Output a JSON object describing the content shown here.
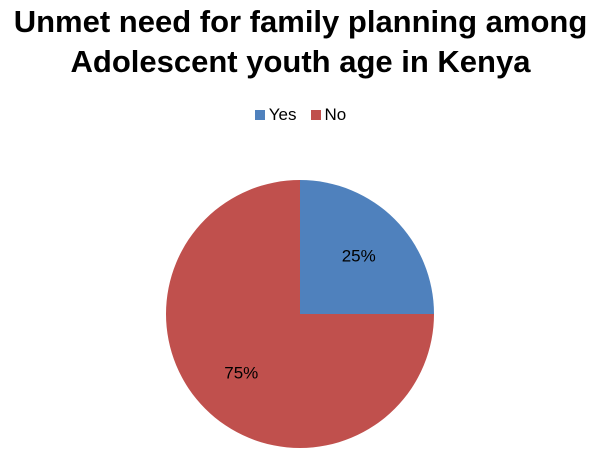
{
  "chart_data": {
    "type": "pie",
    "title_lines": [
      "Unmet need for family planning among",
      "Adolescent youth age in Kenya"
    ],
    "categories": [
      "Yes",
      "No"
    ],
    "values": [
      25,
      75
    ],
    "labels": [
      "25%",
      "75%"
    ],
    "colors": [
      "#4F81BD",
      "#C0504D"
    ],
    "legend_position": "top"
  }
}
